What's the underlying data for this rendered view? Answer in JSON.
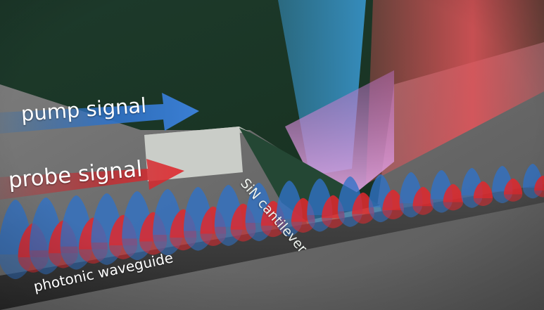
{
  "labels": {
    "pump": "pump signal",
    "probe": "probe signal",
    "cantilever": "SiN cantilever",
    "waveguide": "photonic waveguide"
  },
  "colors": {
    "pump": "#2f72c8",
    "probe": "#e0282d",
    "chip": "#1e3b2c",
    "cantilever": "#254a36",
    "floor": "#6a6a6a",
    "waveguide": "#3a3a3a",
    "pedestal": "#c8cac6",
    "beam_red": "#e5545a",
    "beam_blue": "#3a9bd6",
    "beam_pink": "#d48ad2"
  },
  "icons": {
    "pump_arrow": "blue-arrow-icon",
    "probe_arrow": "red-arrow-icon"
  }
}
